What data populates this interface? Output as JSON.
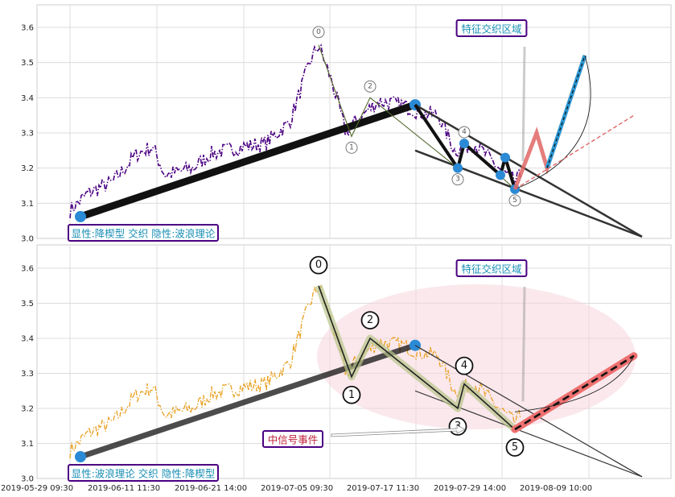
{
  "chart_data": [
    {
      "type": "line",
      "ylim": [
        3.0,
        3.65
      ],
      "yticks": [
        "3.0",
        "3.1",
        "3.2",
        "3.3",
        "3.4",
        "3.5",
        "3.6"
      ],
      "price_color": "#4b0082",
      "boxes": [
        {
          "text": "特征交织区域",
          "color": "#1a8fb5"
        },
        {
          "text": "显性:降楔型 交织 隐性:波浪理论",
          "color": "#1a8fb5"
        }
      ],
      "wave_labels": [
        "0",
        "1",
        "2",
        "3",
        "4",
        "5"
      ]
    },
    {
      "type": "line",
      "ylim": [
        3.0,
        3.65
      ],
      "yticks": [
        "3.0",
        "3.1",
        "3.2",
        "3.3",
        "3.4",
        "3.5",
        "3.6"
      ],
      "price_color": "#e8a020",
      "boxes": [
        {
          "text": "特征交织区域",
          "color": "#1a8fb5"
        },
        {
          "text": "中信号事件",
          "color": "#c0203a"
        },
        {
          "text": "显性:波浪理论 交织 隐性:降楔型",
          "color": "#1a8fb5"
        }
      ],
      "wave_labels": [
        "0",
        "1",
        "2",
        "3",
        "4",
        "5"
      ],
      "x_ticks": [
        "2019-05-29 09:30",
        "2019-06-11 11:30",
        "2019-06-21 14:00",
        "2019-07-05 09:30",
        "2019-07-17 11:30",
        "2019-07-29 14:00",
        "2019-08-09 10:00"
      ]
    }
  ]
}
